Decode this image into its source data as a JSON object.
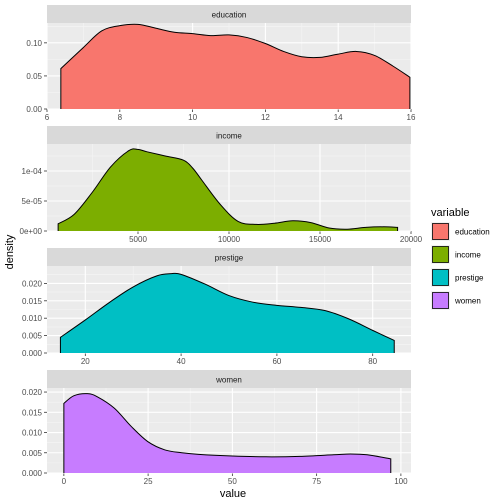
{
  "chart_data": {
    "type": "area",
    "subtype": "density",
    "xlabel": "value",
    "ylabel": "density",
    "legend": {
      "title": "variable",
      "position": "right"
    },
    "grid": true,
    "panels": [
      {
        "name": "education",
        "color": "#F8766D",
        "xlim": [
          6,
          16
        ],
        "xticks": [
          6,
          8,
          10,
          12,
          14,
          16
        ],
        "ylim": [
          0,
          0.13
        ],
        "yticks": [
          0,
          0.05,
          0.1
        ],
        "ytick_labels": [
          "0.00",
          "0.05",
          "0.10"
        ],
        "x": [
          6.38,
          7.0,
          7.5,
          8.0,
          8.5,
          9.0,
          9.5,
          10.0,
          10.5,
          11.0,
          11.5,
          12.0,
          12.5,
          13.0,
          13.5,
          14.0,
          14.5,
          15.0,
          15.5,
          15.97
        ],
        "density": [
          0.061,
          0.093,
          0.118,
          0.126,
          0.128,
          0.122,
          0.116,
          0.114,
          0.111,
          0.112,
          0.108,
          0.099,
          0.087,
          0.079,
          0.078,
          0.083,
          0.087,
          0.081,
          0.065,
          0.048
        ]
      },
      {
        "name": "income",
        "color": "#7CAE00",
        "xlim": [
          0,
          20000
        ],
        "xticks": [
          5000,
          10000,
          15000,
          20000
        ],
        "ylim": [
          0,
          0.000145
        ],
        "yticks": [
          0,
          5e-05,
          0.0001
        ],
        "ytick_labels": [
          "0e+00",
          "5e-05",
          "1e-04"
        ],
        "x": [
          611,
          1500,
          2500,
          3500,
          4500,
          5000,
          5500,
          6500,
          7500,
          8000,
          8500,
          9500,
          10500,
          11500,
          12500,
          13500,
          14500,
          15500,
          16500,
          17500,
          18500,
          19263
        ],
        "density": [
          1.2e-05,
          2.8e-05,
          6.5e-05,
          0.000107,
          0.000134,
          0.000136,
          0.000132,
          0.000125,
          0.000118,
          0.000105,
          8.5e-05,
          4.5e-05,
          1.6e-05,
          1.1e-05,
          1.3e-05,
          1.7e-05,
          1.4e-05,
          5e-06,
          3e-06,
          6e-06,
          7e-06,
          6e-06
        ]
      },
      {
        "name": "prestige",
        "color": "#00BFC4",
        "xlim": [
          12,
          88
        ],
        "xticks": [
          20,
          40,
          60,
          80
        ],
        "ylim": [
          0,
          0.025
        ],
        "yticks": [
          0,
          0.005,
          0.01,
          0.015,
          0.02
        ],
        "ytick_labels": [
          "0.000",
          "0.005",
          "0.010",
          "0.015",
          "0.020"
        ],
        "x": [
          14.8,
          20,
          25,
          30,
          35,
          38,
          40,
          45,
          50,
          55,
          60,
          65,
          70,
          75,
          80,
          84.5
        ],
        "density": [
          0.0045,
          0.0095,
          0.0145,
          0.019,
          0.0222,
          0.0228,
          0.0226,
          0.0198,
          0.0165,
          0.0146,
          0.0137,
          0.0131,
          0.0122,
          0.0098,
          0.0065,
          0.0036
        ]
      },
      {
        "name": "women",
        "color": "#C77CFF",
        "xlim": [
          -5,
          103
        ],
        "xticks": [
          0,
          25,
          50,
          75,
          100
        ],
        "ylim": [
          0,
          0.021
        ],
        "yticks": [
          0,
          0.005,
          0.01,
          0.015,
          0.02
        ],
        "ytick_labels": [
          "0.000",
          "0.005",
          "0.010",
          "0.015",
          "0.020"
        ],
        "x": [
          0,
          3,
          7,
          10,
          15,
          20,
          25,
          30,
          35,
          40,
          50,
          60,
          70,
          80,
          85,
          90,
          97
        ],
        "density": [
          0.0172,
          0.0191,
          0.0196,
          0.0188,
          0.016,
          0.0115,
          0.0077,
          0.0057,
          0.005,
          0.0046,
          0.0042,
          0.004,
          0.0041,
          0.0045,
          0.0047,
          0.0045,
          0.0035
        ]
      }
    ]
  }
}
